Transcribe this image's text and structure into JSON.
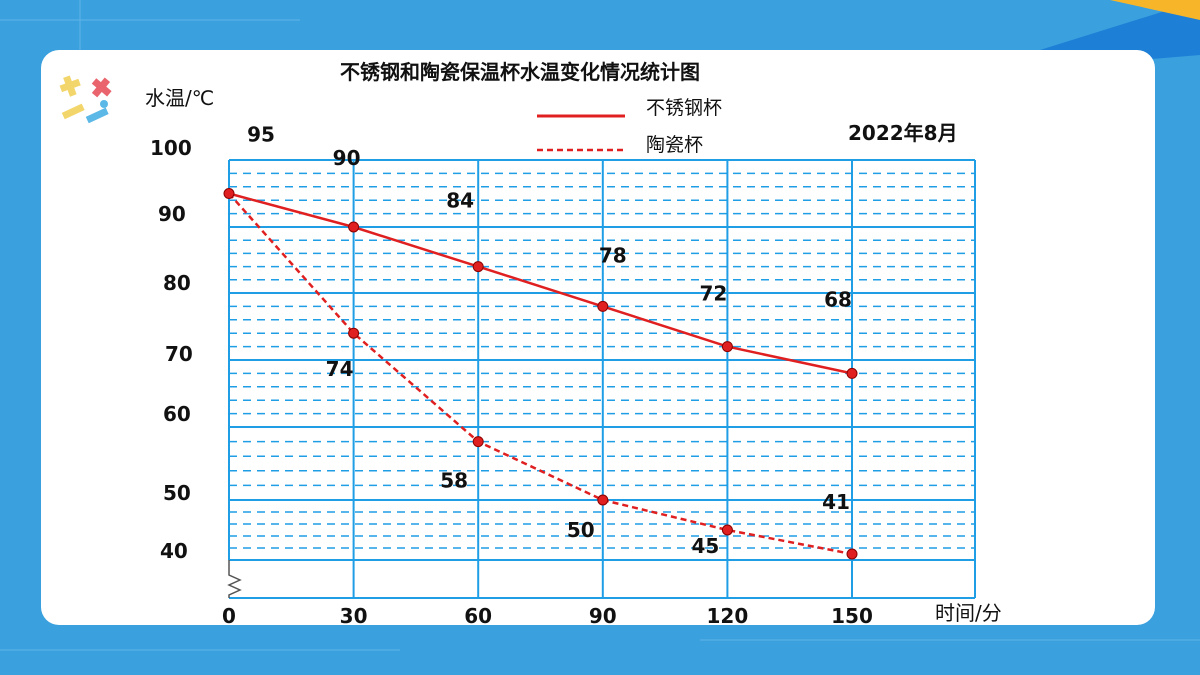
{
  "chart_data": {
    "type": "line",
    "title": "不锈钢和陶瓷保温杯水温变化情况统计图",
    "date": "2022年8月",
    "ylabel": "水温/℃",
    "xlabel": "时间/分",
    "x": [
      0,
      30,
      60,
      90,
      120,
      150
    ],
    "y_ticks": [
      "100",
      "90",
      "80",
      "70",
      "60",
      "50",
      "40"
    ],
    "series": [
      {
        "name": "不锈钢杯",
        "values": [
          95,
          90,
          84,
          78,
          72,
          68
        ],
        "color": "#e02020",
        "style": "solid"
      },
      {
        "name": "陶瓷杯",
        "values": [
          95,
          74,
          58,
          50,
          45,
          41
        ],
        "color": "#e02020",
        "style": "dashed"
      }
    ],
    "grid": true,
    "axis_break": true,
    "legend": "top-center"
  },
  "colors": {
    "background": "#3aa0de",
    "grid": "#1f9ee6",
    "line": "#e02020",
    "card": "#ffffff"
  }
}
